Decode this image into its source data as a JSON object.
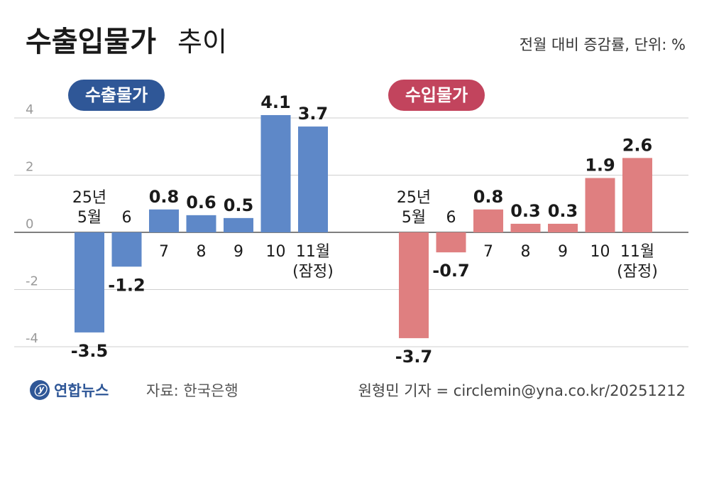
{
  "header": {
    "title_bold": "수출입물가",
    "title_light": "추이",
    "unit_note": "전월 대비 증감률, 단위: %"
  },
  "footer": {
    "logo_text": "연합뉴스",
    "source": "자료: 한국은행",
    "credit": "원형민 기자 = circlemin@yna.co.kr/20251212"
  },
  "colors": {
    "export": "#5e88c8",
    "import": "#df7f80",
    "export_badge": "#2f5797",
    "import_badge": "#c2445d"
  },
  "chart_data": [
    {
      "type": "bar",
      "title": "수출물가",
      "categories": [
        [
          "25년",
          "5월"
        ],
        [
          "6"
        ],
        [
          "7"
        ],
        [
          "8"
        ],
        [
          "9"
        ],
        [
          "10"
        ],
        [
          "11월",
          "(잠정)"
        ]
      ],
      "values": [
        -3.5,
        -1.2,
        0.8,
        0.6,
        0.5,
        4.1,
        3.7
      ],
      "value_labels": [
        "-3.5",
        "-1.2",
        "0.8",
        "0.6",
        "0.5",
        "4.1",
        "3.7"
      ],
      "yticks": [
        "4",
        "2",
        "0",
        "-2",
        "-4"
      ],
      "ylim": [
        -4,
        4
      ],
      "grid": true
    },
    {
      "type": "bar",
      "title": "수입물가",
      "categories": [
        [
          "25년",
          "5월"
        ],
        [
          "6"
        ],
        [
          "7"
        ],
        [
          "8"
        ],
        [
          "9"
        ],
        [
          "10"
        ],
        [
          "11월",
          "(잠정)"
        ]
      ],
      "values": [
        -3.7,
        -0.7,
        0.8,
        0.3,
        0.3,
        1.9,
        2.6
      ],
      "value_labels": [
        "-3.7",
        "-0.7",
        "0.8",
        "0.3",
        "0.3",
        "1.9",
        "2.6"
      ],
      "ylim": [
        -4,
        4
      ],
      "grid": true
    }
  ]
}
